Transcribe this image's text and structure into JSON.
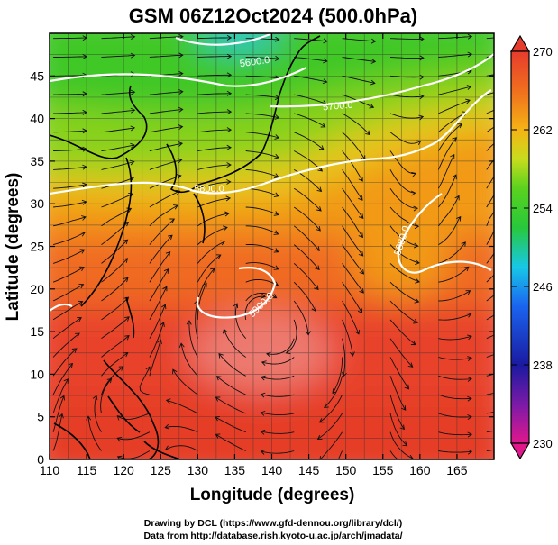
{
  "chart_data": {
    "type": "heatmap",
    "title": "GSM 06Z12Oct2024 (500.0hPa)",
    "xlabel": "Longitude (degrees)",
    "ylabel": "Latitude  (degrees)",
    "xlim": [
      110,
      170
    ],
    "ylim": [
      0,
      50
    ],
    "x_ticks": [
      "110",
      "115",
      "120",
      "125",
      "130",
      "135",
      "140",
      "145",
      "150",
      "155",
      "160",
      "165"
    ],
    "y_ticks": [
      "0",
      "5",
      "10",
      "15",
      "20",
      "25",
      "30",
      "35",
      "40",
      "45"
    ],
    "colorbar": {
      "min": 230,
      "max": 270,
      "ticks": [
        "270",
        "262",
        "254",
        "246",
        "238",
        "230"
      ],
      "stops": [
        {
          "value": 230,
          "color": "#e0188c"
        },
        {
          "value": 234,
          "color": "#7a1aa8"
        },
        {
          "value": 238,
          "color": "#1a1aa0"
        },
        {
          "value": 244,
          "color": "#1a64f0"
        },
        {
          "value": 248,
          "color": "#18c8e6"
        },
        {
          "value": 252,
          "color": "#28c83c"
        },
        {
          "value": 256,
          "color": "#5ad21e"
        },
        {
          "value": 259,
          "color": "#c8dc1e"
        },
        {
          "value": 262,
          "color": "#f5b414"
        },
        {
          "value": 266,
          "color": "#f06e1e"
        },
        {
          "value": 270,
          "color": "#e63c2d"
        }
      ]
    },
    "contours": [
      {
        "label": "5600.0",
        "level": 5600
      },
      {
        "label": "5700.0",
        "level": 5700
      },
      {
        "label": "5800.0",
        "level": 5800
      },
      {
        "label": "5880.0",
        "level": 5880
      },
      {
        "label": "5900.0",
        "level": 5900
      }
    ],
    "grid": true
  },
  "footer": {
    "line1": "Drawing by DCL (https://www.gfd-dennou.org/library/dcl/)",
    "line2": "Data from http://database.rish.kyoto-u.ac.jp/arch/jmadata/"
  }
}
